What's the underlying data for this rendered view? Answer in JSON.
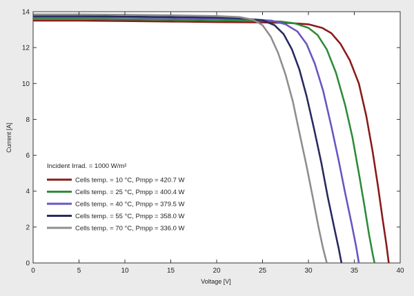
{
  "chart_data": {
    "type": "line",
    "title": "",
    "xlabel": "Voltage  [V]",
    "ylabel": "Current     [A]",
    "xlim": [
      0,
      40
    ],
    "ylim": [
      0,
      14
    ],
    "xticks": [
      0,
      5,
      10,
      15,
      20,
      25,
      30,
      35,
      40
    ],
    "yticks": [
      0,
      2,
      4,
      6,
      8,
      10,
      12,
      14
    ],
    "grid": false,
    "legend_position": "center-left",
    "legend_header": "Incident Irrad. = 1000 W/m²",
    "series": [
      {
        "name": "Cells temp. = 10  °C,  Pmpp = 420.7 W",
        "color": "#8b1a1a",
        "points": [
          [
            0,
            13.5
          ],
          [
            5,
            13.5
          ],
          [
            10,
            13.48
          ],
          [
            15,
            13.45
          ],
          [
            20,
            13.42
          ],
          [
            25,
            13.4
          ],
          [
            28,
            13.37
          ],
          [
            30,
            13.3
          ],
          [
            31.5,
            13.1
          ],
          [
            32.5,
            12.8
          ],
          [
            33.5,
            12.2
          ],
          [
            34.5,
            11.3
          ],
          [
            35.5,
            10.0
          ],
          [
            36.3,
            8.2
          ],
          [
            37,
            6.2
          ],
          [
            37.6,
            4.2
          ],
          [
            38.1,
            2.4
          ],
          [
            38.5,
            1.0
          ],
          [
            38.75,
            0
          ]
        ]
      },
      {
        "name": "Cells temp. = 25  °C,  Pmpp = 400.4 W",
        "color": "#2e8b3a",
        "points": [
          [
            0,
            13.6
          ],
          [
            5,
            13.6
          ],
          [
            10,
            13.57
          ],
          [
            15,
            13.55
          ],
          [
            20,
            13.52
          ],
          [
            25,
            13.48
          ],
          [
            27,
            13.45
          ],
          [
            28.5,
            13.35
          ],
          [
            30,
            13.1
          ],
          [
            31,
            12.7
          ],
          [
            32,
            11.9
          ],
          [
            33,
            10.6
          ],
          [
            34,
            8.8
          ],
          [
            34.8,
            7.0
          ],
          [
            35.5,
            5.0
          ],
          [
            36.1,
            3.2
          ],
          [
            36.6,
            1.6
          ],
          [
            37,
            0.5
          ],
          [
            37.2,
            0
          ]
        ]
      },
      {
        "name": "Cells temp. = 40  °C,  Pmpp = 379.5 W",
        "color": "#6a55c0",
        "points": [
          [
            0,
            13.7
          ],
          [
            5,
            13.7
          ],
          [
            10,
            13.68
          ],
          [
            15,
            13.65
          ],
          [
            20,
            13.62
          ],
          [
            24,
            13.57
          ],
          [
            26,
            13.5
          ],
          [
            27.5,
            13.3
          ],
          [
            28.8,
            12.9
          ],
          [
            29.8,
            12.2
          ],
          [
            30.7,
            11.1
          ],
          [
            31.6,
            9.6
          ],
          [
            32.5,
            7.6
          ],
          [
            33.3,
            5.7
          ],
          [
            34,
            3.9
          ],
          [
            34.7,
            2.2
          ],
          [
            35.2,
            0.9
          ],
          [
            35.5,
            0
          ]
        ]
      },
      {
        "name": "Cells temp. = 55  °C,  Pmpp = 358.0 W",
        "color": "#262a5e",
        "points": [
          [
            0,
            13.75
          ],
          [
            5,
            13.75
          ],
          [
            10,
            13.73
          ],
          [
            15,
            13.7
          ],
          [
            20,
            13.67
          ],
          [
            23,
            13.62
          ],
          [
            25,
            13.52
          ],
          [
            26.3,
            13.25
          ],
          [
            27.3,
            12.75
          ],
          [
            28.2,
            11.9
          ],
          [
            29,
            10.8
          ],
          [
            29.8,
            9.3
          ],
          [
            30.6,
            7.5
          ],
          [
            31.4,
            5.6
          ],
          [
            32.1,
            3.7
          ],
          [
            32.8,
            2.0
          ],
          [
            33.3,
            0.8
          ],
          [
            33.6,
            0
          ]
        ]
      },
      {
        "name": "Cells temp. = 70  °C,  Pmpp = 336.0 W",
        "color": "#8e8e8e",
        "points": [
          [
            0,
            13.85
          ],
          [
            5,
            13.85
          ],
          [
            10,
            13.83
          ],
          [
            15,
            13.8
          ],
          [
            20,
            13.76
          ],
          [
            22.5,
            13.7
          ],
          [
            24,
            13.55
          ],
          [
            25,
            13.25
          ],
          [
            25.9,
            12.6
          ],
          [
            26.7,
            11.7
          ],
          [
            27.5,
            10.5
          ],
          [
            28.3,
            9.0
          ],
          [
            29,
            7.3
          ],
          [
            29.8,
            5.4
          ],
          [
            30.5,
            3.6
          ],
          [
            31.1,
            2.0
          ],
          [
            31.6,
            0.8
          ],
          [
            32,
            0
          ]
        ]
      }
    ]
  }
}
